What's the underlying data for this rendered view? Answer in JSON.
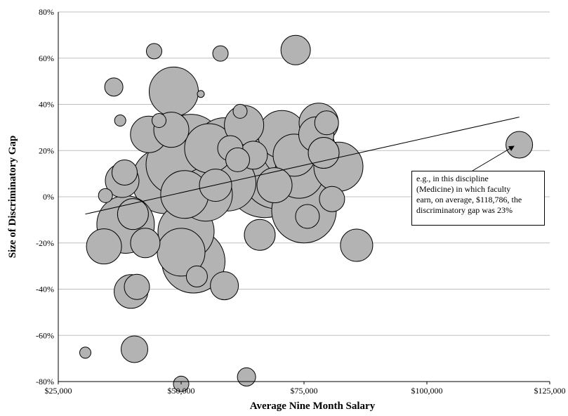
{
  "chart_data": {
    "type": "bubble",
    "xlabel": "Average Nine Month Salary",
    "ylabel": "Size of Discriminatory Gap",
    "xlim": [
      25000,
      125000
    ],
    "ylim": [
      -80,
      80
    ],
    "x_ticks": [
      "$25,000",
      "$50,000",
      "$75,000",
      "$100,000",
      "$125,000"
    ],
    "y_ticks": [
      "-80%",
      "-60%",
      "-40%",
      "-20%",
      "0%",
      "20%",
      "40%",
      "60%",
      "80%"
    ],
    "grid": "horizontal",
    "trendline": {
      "x": [
        30500,
        118800
      ],
      "y": [
        -7.5,
        34.5
      ]
    },
    "points": [
      {
        "x": 30500,
        "y": -67.5,
        "size": 8
      },
      {
        "x": 34300,
        "y": -21.5,
        "size": 25
      },
      {
        "x": 34600,
        "y": 0.5,
        "size": 10
      },
      {
        "x": 36300,
        "y": 47.5,
        "size": 13
      },
      {
        "x": 37600,
        "y": 33,
        "size": 8
      },
      {
        "x": 38000,
        "y": 7,
        "size": 24
      },
      {
        "x": 38500,
        "y": 10.5,
        "size": 18
      },
      {
        "x": 38700,
        "y": -12,
        "size": 41
      },
      {
        "x": 39800,
        "y": -41,
        "size": 24
      },
      {
        "x": 40200,
        "y": -7.5,
        "size": 22
      },
      {
        "x": 40500,
        "y": -66,
        "size": 19
      },
      {
        "x": 41000,
        "y": -39,
        "size": 18
      },
      {
        "x": 42700,
        "y": -20,
        "size": 21
      },
      {
        "x": 43400,
        "y": 27,
        "size": 26
      },
      {
        "x": 44500,
        "y": 63,
        "size": 11
      },
      {
        "x": 45500,
        "y": 33,
        "size": 10
      },
      {
        "x": 46700,
        "y": 7,
        "size": 47
      },
      {
        "x": 48000,
        "y": 29,
        "size": 25
      },
      {
        "x": 48500,
        "y": 45.5,
        "size": 35
      },
      {
        "x": 49000,
        "y": 14,
        "size": 43
      },
      {
        "x": 50000,
        "y": -24,
        "size": 34
      },
      {
        "x": 50000,
        "y": -81,
        "size": 11
      },
      {
        "x": 50700,
        "y": 1,
        "size": 34
      },
      {
        "x": 51000,
        "y": -15,
        "size": 40
      },
      {
        "x": 52000,
        "y": 22,
        "size": 45
      },
      {
        "x": 52500,
        "y": -28,
        "size": 45
      },
      {
        "x": 53200,
        "y": -34.5,
        "size": 15
      },
      {
        "x": 54000,
        "y": 44.5,
        "size": 5
      },
      {
        "x": 55000,
        "y": 1,
        "size": 38
      },
      {
        "x": 55700,
        "y": 21,
        "size": 35
      },
      {
        "x": 57000,
        "y": 5,
        "size": 23
      },
      {
        "x": 58000,
        "y": 62,
        "size": 11
      },
      {
        "x": 58700,
        "y": 22,
        "size": 40
      },
      {
        "x": 58800,
        "y": -38.5,
        "size": 20
      },
      {
        "x": 59500,
        "y": 6,
        "size": 40
      },
      {
        "x": 60000,
        "y": 21,
        "size": 18
      },
      {
        "x": 61500,
        "y": 16,
        "size": 17
      },
      {
        "x": 62000,
        "y": 37,
        "size": 10
      },
      {
        "x": 62800,
        "y": 31,
        "size": 28
      },
      {
        "x": 63300,
        "y": -78,
        "size": 13
      },
      {
        "x": 64700,
        "y": 18,
        "size": 20
      },
      {
        "x": 66000,
        "y": -16.5,
        "size": 22
      },
      {
        "x": 67000,
        "y": 8,
        "size": 56
      },
      {
        "x": 69000,
        "y": 5,
        "size": 25
      },
      {
        "x": 69500,
        "y": 10,
        "size": 50
      },
      {
        "x": 70500,
        "y": 27,
        "size": 34
      },
      {
        "x": 72000,
        "y": 20,
        "size": 38
      },
      {
        "x": 73000,
        "y": 18,
        "size": 30
      },
      {
        "x": 73300,
        "y": 63.5,
        "size": 21
      },
      {
        "x": 74000,
        "y": 10,
        "size": 35
      },
      {
        "x": 75000,
        "y": -6,
        "size": 46
      },
      {
        "x": 75700,
        "y": -8.5,
        "size": 17
      },
      {
        "x": 76200,
        "y": 21,
        "size": 36
      },
      {
        "x": 77500,
        "y": 27,
        "size": 25
      },
      {
        "x": 78000,
        "y": 32,
        "size": 28
      },
      {
        "x": 79000,
        "y": 19,
        "size": 22
      },
      {
        "x": 79600,
        "y": 32,
        "size": 17
      },
      {
        "x": 80700,
        "y": -1,
        "size": 18
      },
      {
        "x": 82000,
        "y": 13,
        "size": 35
      },
      {
        "x": 85700,
        "y": -21,
        "size": 23
      },
      {
        "x": 118800,
        "y": 22.5,
        "size": 19
      }
    ],
    "annotation": {
      "lines": [
        "e.g., in this discipline",
        "(Medicine) in which faculty",
        "earn, on average, $118,786, the",
        "discriminatory gap was 23%"
      ]
    }
  }
}
